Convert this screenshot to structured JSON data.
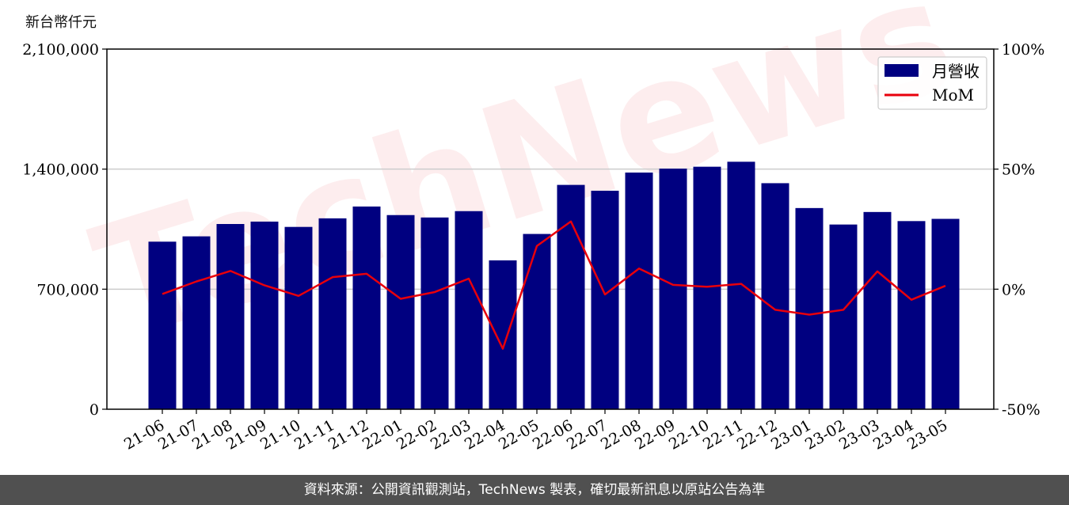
{
  "unit_label": "新台幣仟元",
  "footer": "資料來源：公開資訊觀測站，TechNews 製表，確切最新訊息以原站公告為準",
  "watermark": "TechNews",
  "colors": {
    "bar": "#000080",
    "line": "#e8000b",
    "grid": "#cccccc",
    "footer_bg": "#505050"
  },
  "chart_data": {
    "type": "bar",
    "categories": [
      "21-06",
      "21-07",
      "21-08",
      "21-09",
      "21-10",
      "21-11",
      "21-12",
      "22-01",
      "22-02",
      "22-03",
      "22-04",
      "22-05",
      "22-06",
      "22-07",
      "22-08",
      "22-09",
      "22-10",
      "22-11",
      "22-12",
      "23-01",
      "23-02",
      "23-03",
      "23-04",
      "23-05"
    ],
    "series": [
      {
        "name": "月營收",
        "axis": "left",
        "type": "bar",
        "values": [
          977000,
          1008000,
          1080000,
          1094000,
          1063000,
          1113000,
          1182000,
          1132000,
          1118000,
          1155000,
          868000,
          1022000,
          1308000,
          1274000,
          1380000,
          1403000,
          1414000,
          1443000,
          1318000,
          1173000,
          1077000,
          1150000,
          1097000,
          1110000
        ]
      },
      {
        "name": "MoM",
        "axis": "right",
        "type": "line",
        "values": [
          -2,
          3.2,
          7.6,
          1.6,
          -2.8,
          5.0,
          6.4,
          -4.0,
          -1.2,
          4.4,
          -24.8,
          18.0,
          28.2,
          -2.2,
          8.6,
          1.8,
          1.0,
          2.2,
          -8.6,
          -10.6,
          -8.6,
          7.4,
          -4.4,
          1.4
        ]
      }
    ],
    "y_left": {
      "ylim": [
        0,
        2100000
      ],
      "ticks": [
        0,
        700000,
        1400000,
        2100000
      ],
      "tick_labels": [
        "0",
        "700,000",
        "1,400,000",
        "2,100,000"
      ]
    },
    "y_right": {
      "ylim": [
        -50,
        100
      ],
      "ticks": [
        -50,
        0,
        50,
        100
      ],
      "tick_labels": [
        "-50%",
        "0%",
        "50%",
        "100%"
      ]
    },
    "grid": "horizontal",
    "legend": {
      "placement": "top-right",
      "entries": [
        "月營收",
        "MoM"
      ]
    }
  }
}
